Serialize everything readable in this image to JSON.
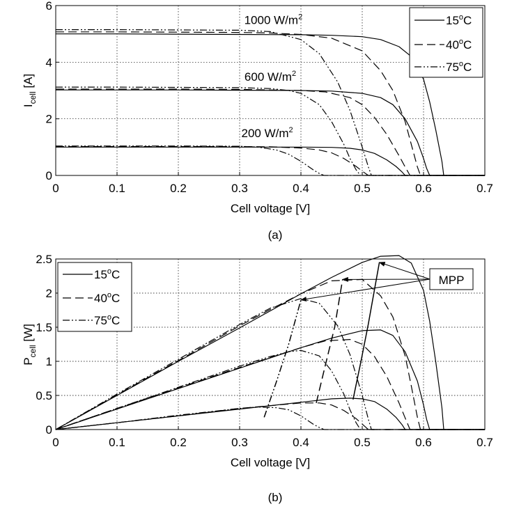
{
  "chart_data": [
    {
      "type": "line",
      "caption": "(a)",
      "xlabel": "Cell voltage [V]",
      "ylabel": {
        "main": "I",
        "sub": "cell",
        "rest": " [A]"
      },
      "xlim": [
        0,
        0.7
      ],
      "ylim": [
        0,
        6
      ],
      "xticks": [
        "0",
        "0.1",
        "0.2",
        "0.3",
        "0.4",
        "0.5",
        "0.6",
        "0.7"
      ],
      "yticks": [
        "0",
        "2",
        "4",
        "6"
      ],
      "grid": true,
      "legend_position": "top-right",
      "legend": [
        {
          "temp": "15",
          "sup": "o",
          "unit": "C",
          "style": "solid"
        },
        {
          "temp": "40",
          "sup": "o",
          "unit": "C",
          "style": "dashed"
        },
        {
          "temp": "75",
          "sup": "o",
          "unit": "C",
          "style": "dashdot"
        }
      ],
      "annotations": [
        {
          "text": "1000 W/m",
          "sup": "2",
          "x": 0.355,
          "y": 5.35
        },
        {
          "text": "600 W/m",
          "sup": "2",
          "x": 0.35,
          "y": 3.35
        },
        {
          "text": "200 W/m",
          "sup": "2",
          "x": 0.345,
          "y": 1.35
        }
      ],
      "series": [
        {
          "temp": "15",
          "irr": "1000",
          "style": "solid",
          "x": [
            0,
            0.1,
            0.2,
            0.3,
            0.4,
            0.45,
            0.5,
            0.53,
            0.56,
            0.58,
            0.6,
            0.61,
            0.62,
            0.63,
            0.633,
            0.7
          ],
          "y": [
            5.0,
            5.0,
            4.99,
            4.98,
            4.97,
            4.95,
            4.9,
            4.8,
            4.55,
            4.2,
            3.4,
            2.6,
            1.6,
            0.5,
            0,
            0
          ]
        },
        {
          "temp": "40",
          "irr": "1000",
          "style": "dashed",
          "x": [
            0,
            0.1,
            0.2,
            0.3,
            0.35,
            0.4,
            0.45,
            0.5,
            0.53,
            0.55,
            0.57,
            0.58,
            0.59,
            0.595,
            0.7
          ],
          "y": [
            5.07,
            5.07,
            5.06,
            5.05,
            5.03,
            4.98,
            4.85,
            4.4,
            3.7,
            3.0,
            1.9,
            1.1,
            0.3,
            0,
            0
          ]
        },
        {
          "temp": "75",
          "irr": "1000",
          "style": "dashdot",
          "x": [
            0,
            0.1,
            0.2,
            0.3,
            0.35,
            0.4,
            0.43,
            0.46,
            0.48,
            0.5,
            0.51,
            0.515,
            0.7
          ],
          "y": [
            5.15,
            5.15,
            5.14,
            5.13,
            5.08,
            4.8,
            4.3,
            3.3,
            2.3,
            1.0,
            0.3,
            0,
            0
          ]
        },
        {
          "temp": "15",
          "irr": "600",
          "style": "solid",
          "x": [
            0,
            0.1,
            0.2,
            0.3,
            0.4,
            0.45,
            0.5,
            0.53,
            0.55,
            0.57,
            0.59,
            0.6,
            0.605,
            0.61,
            0.7
          ],
          "y": [
            3.02,
            3.02,
            3.02,
            3.01,
            3.0,
            2.98,
            2.9,
            2.75,
            2.5,
            2.0,
            1.2,
            0.6,
            0.25,
            0,
            0
          ]
        },
        {
          "temp": "40",
          "irr": "600",
          "style": "dashed",
          "x": [
            0,
            0.1,
            0.2,
            0.3,
            0.4,
            0.44,
            0.48,
            0.5,
            0.52,
            0.54,
            0.56,
            0.57,
            0.578,
            0.7
          ],
          "y": [
            3.05,
            3.05,
            3.05,
            3.04,
            3.0,
            2.95,
            2.75,
            2.5,
            2.05,
            1.45,
            0.7,
            0.3,
            0,
            0
          ]
        },
        {
          "temp": "75",
          "irr": "600",
          "style": "dashdot",
          "x": [
            0,
            0.1,
            0.2,
            0.3,
            0.35,
            0.38,
            0.4,
            0.43,
            0.45,
            0.47,
            0.48,
            0.49,
            0.497,
            0.7
          ],
          "y": [
            3.12,
            3.12,
            3.11,
            3.1,
            3.07,
            3.0,
            2.9,
            2.5,
            1.9,
            1.1,
            0.6,
            0.2,
            0,
            0
          ]
        },
        {
          "temp": "15",
          "irr": "200",
          "style": "solid",
          "x": [
            0,
            0.1,
            0.2,
            0.3,
            0.4,
            0.45,
            0.48,
            0.5,
            0.52,
            0.54,
            0.555,
            0.565,
            0.57,
            0.7
          ],
          "y": [
            1.0,
            1.0,
            1.0,
            1.0,
            1.0,
            0.99,
            0.96,
            0.9,
            0.78,
            0.55,
            0.32,
            0.12,
            0,
            0
          ]
        },
        {
          "temp": "40",
          "irr": "200",
          "style": "dashed",
          "x": [
            0,
            0.1,
            0.2,
            0.3,
            0.35,
            0.4,
            0.43,
            0.45,
            0.47,
            0.49,
            0.5,
            0.51,
            0.7
          ],
          "y": [
            1.02,
            1.02,
            1.02,
            1.02,
            1.01,
            0.97,
            0.9,
            0.8,
            0.6,
            0.32,
            0.15,
            0,
            0
          ]
        },
        {
          "temp": "75",
          "irr": "200",
          "style": "dashdot",
          "x": [
            0,
            0.1,
            0.2,
            0.3,
            0.33,
            0.36,
            0.38,
            0.4,
            0.41,
            0.42,
            0.43,
            0.438,
            0.7
          ],
          "y": [
            1.04,
            1.04,
            1.04,
            1.03,
            1.0,
            0.9,
            0.75,
            0.5,
            0.35,
            0.2,
            0.07,
            0,
            0
          ]
        }
      ]
    },
    {
      "type": "line",
      "caption": "(b)",
      "xlabel": "Cell voltage [V]",
      "ylabel": {
        "main": "P",
        "sub": "cell",
        "rest": " [W]"
      },
      "xlim": [
        0,
        0.7
      ],
      "ylim": [
        0,
        2.5
      ],
      "xticks": [
        "0",
        "0.1",
        "0.2",
        "0.3",
        "0.4",
        "0.5",
        "0.6",
        "0.7"
      ],
      "yticks": [
        "0",
        "0.5",
        "1",
        "1.5",
        "2",
        "2.5"
      ],
      "grid": true,
      "legend_position": "top-left",
      "legend": [
        {
          "temp": "15",
          "sup": "o",
          "unit": "C",
          "style": "solid"
        },
        {
          "temp": "40",
          "sup": "o",
          "unit": "C",
          "style": "dashed"
        },
        {
          "temp": "75",
          "sup": "o",
          "unit": "C",
          "style": "dashdot"
        }
      ],
      "mpp_label": "MPP",
      "mpp_points": [
        {
          "x": 0.528,
          "y": 2.45
        },
        {
          "x": 0.468,
          "y": 2.2
        },
        {
          "x": 0.4,
          "y": 1.9
        }
      ],
      "series": [
        {
          "temp": "15",
          "irr": "1000",
          "style": "solid",
          "x": [
            0,
            0.1,
            0.2,
            0.3,
            0.4,
            0.45,
            0.5,
            0.53,
            0.56,
            0.58,
            0.6,
            0.61,
            0.62,
            0.63,
            0.633,
            0.7
          ],
          "y": [
            0,
            0.5,
            1.0,
            1.49,
            1.99,
            2.23,
            2.45,
            2.54,
            2.55,
            2.44,
            2.04,
            1.59,
            0.99,
            0.32,
            0,
            0
          ]
        },
        {
          "temp": "40",
          "irr": "1000",
          "style": "dashed",
          "x": [
            0,
            0.1,
            0.2,
            0.3,
            0.35,
            0.4,
            0.45,
            0.5,
            0.53,
            0.55,
            0.57,
            0.58,
            0.59,
            0.595,
            0.7
          ],
          "y": [
            0,
            0.51,
            1.01,
            1.52,
            1.76,
            1.99,
            2.18,
            2.2,
            1.96,
            1.65,
            1.08,
            0.64,
            0.18,
            0,
            0
          ]
        },
        {
          "temp": "75",
          "irr": "1000",
          "style": "dashdot",
          "x": [
            0,
            0.1,
            0.2,
            0.3,
            0.35,
            0.4,
            0.43,
            0.46,
            0.48,
            0.5,
            0.51,
            0.515,
            0.7
          ],
          "y": [
            0,
            0.52,
            1.03,
            1.54,
            1.78,
            1.92,
            1.85,
            1.52,
            1.1,
            0.5,
            0.15,
            0,
            0
          ]
        },
        {
          "temp": "15",
          "irr": "600",
          "style": "solid",
          "x": [
            0,
            0.1,
            0.2,
            0.3,
            0.4,
            0.45,
            0.5,
            0.53,
            0.55,
            0.57,
            0.59,
            0.6,
            0.605,
            0.61,
            0.7
          ],
          "y": [
            0,
            0.3,
            0.6,
            0.9,
            1.2,
            1.34,
            1.45,
            1.46,
            1.38,
            1.14,
            0.71,
            0.36,
            0.15,
            0,
            0
          ]
        },
        {
          "temp": "40",
          "irr": "600",
          "style": "dashed",
          "x": [
            0,
            0.1,
            0.2,
            0.3,
            0.4,
            0.44,
            0.48,
            0.5,
            0.52,
            0.54,
            0.56,
            0.57,
            0.578,
            0.7
          ],
          "y": [
            0,
            0.31,
            0.61,
            0.91,
            1.2,
            1.3,
            1.32,
            1.25,
            1.07,
            0.78,
            0.39,
            0.17,
            0,
            0
          ]
        },
        {
          "temp": "75",
          "irr": "600",
          "style": "dashdot",
          "x": [
            0,
            0.1,
            0.2,
            0.3,
            0.35,
            0.38,
            0.4,
            0.43,
            0.45,
            0.47,
            0.48,
            0.49,
            0.497,
            0.7
          ],
          "y": [
            0,
            0.31,
            0.62,
            0.93,
            1.07,
            1.14,
            1.16,
            1.08,
            0.86,
            0.52,
            0.29,
            0.1,
            0,
            0
          ]
        },
        {
          "temp": "15",
          "irr": "200",
          "style": "solid",
          "x": [
            0,
            0.1,
            0.2,
            0.3,
            0.4,
            0.45,
            0.48,
            0.5,
            0.52,
            0.54,
            0.555,
            0.565,
            0.57,
            0.7
          ],
          "y": [
            0,
            0.1,
            0.2,
            0.3,
            0.4,
            0.45,
            0.46,
            0.45,
            0.41,
            0.3,
            0.18,
            0.07,
            0,
            0
          ]
        },
        {
          "temp": "40",
          "irr": "200",
          "style": "dashed",
          "x": [
            0,
            0.1,
            0.2,
            0.3,
            0.35,
            0.4,
            0.43,
            0.45,
            0.47,
            0.49,
            0.5,
            0.51,
            0.7
          ],
          "y": [
            0,
            0.1,
            0.2,
            0.31,
            0.35,
            0.39,
            0.39,
            0.36,
            0.28,
            0.16,
            0.08,
            0,
            0
          ]
        },
        {
          "temp": "75",
          "irr": "200",
          "style": "dashdot",
          "x": [
            0,
            0.1,
            0.2,
            0.3,
            0.33,
            0.36,
            0.38,
            0.4,
            0.41,
            0.42,
            0.43,
            0.438,
            0.7
          ],
          "y": [
            0,
            0.1,
            0.21,
            0.31,
            0.33,
            0.32,
            0.29,
            0.2,
            0.14,
            0.08,
            0.03,
            0,
            0
          ]
        },
        {
          "role": "mpp-locus",
          "temp": "15",
          "style": "solid",
          "x": [
            0.485,
            0.498,
            0.51,
            0.528
          ],
          "y": [
            0.44,
            1.0,
            1.55,
            2.45
          ]
        },
        {
          "role": "mpp-locus",
          "temp": "40",
          "style": "dashed",
          "x": [
            0.425,
            0.44,
            0.455,
            0.468
          ],
          "y": [
            0.39,
            0.95,
            1.5,
            2.2
          ]
        },
        {
          "role": "mpp-locus",
          "temp": "75",
          "style": "dashdot",
          "x": [
            0.34,
            0.36,
            0.38,
            0.4
          ],
          "y": [
            0.18,
            0.7,
            1.25,
            1.9
          ]
        }
      ]
    }
  ]
}
